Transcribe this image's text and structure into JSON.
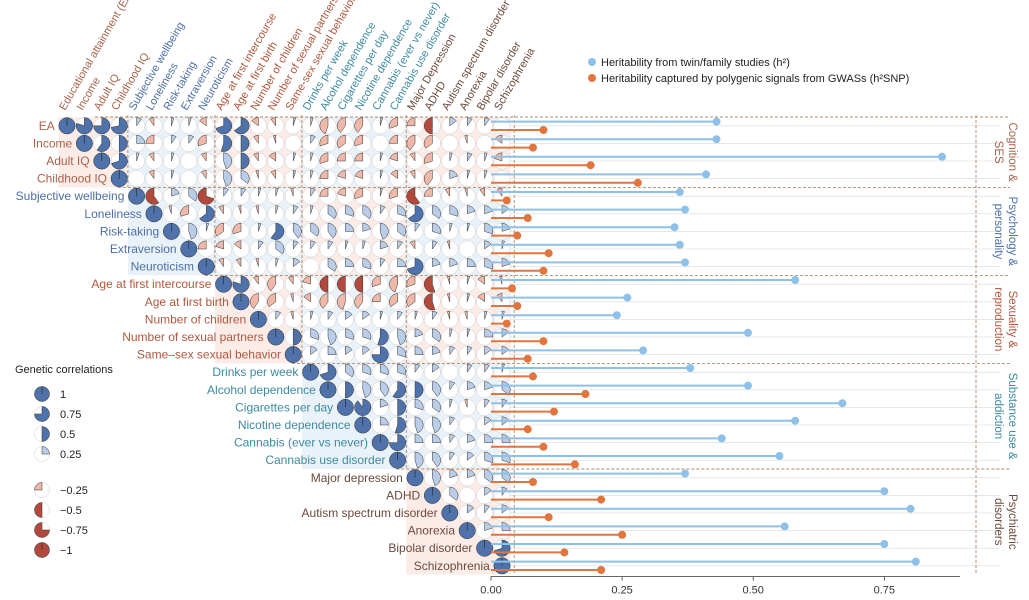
{
  "chart_data": [
    {
      "type": "heatmap",
      "title": "Genetic correlations",
      "traits": [
        {
          "name": "EA",
          "domain": 0
        },
        {
          "name": "Income",
          "domain": 0
        },
        {
          "name": "Adult IQ",
          "domain": 0
        },
        {
          "name": "Childhood IQ",
          "domain": 0
        },
        {
          "name": "Subjective wellbeing",
          "domain": 1
        },
        {
          "name": "Loneliness",
          "domain": 1
        },
        {
          "name": "Risk-taking",
          "domain": 1
        },
        {
          "name": "Extraversion",
          "domain": 1
        },
        {
          "name": "Neuroticism",
          "domain": 1
        },
        {
          "name": "Age at first intercourse",
          "domain": 2
        },
        {
          "name": "Age at first birth",
          "domain": 2
        },
        {
          "name": "Number of children",
          "domain": 2
        },
        {
          "name": "Number of sexual partners",
          "domain": 2
        },
        {
          "name": "Same–sex sexual behavior",
          "domain": 2
        },
        {
          "name": "Drinks per week",
          "domain": 3
        },
        {
          "name": "Alcohol dependence",
          "domain": 3
        },
        {
          "name": "Cigarettes per day",
          "domain": 3
        },
        {
          "name": "Nicotine dependence",
          "domain": 3
        },
        {
          "name": "Cannabis (ever vs never)",
          "domain": 3
        },
        {
          "name": "Cannabis use disorder",
          "domain": 3
        },
        {
          "name": "Major depression",
          "domain": 4
        },
        {
          "name": "ADHD",
          "domain": 4
        },
        {
          "name": "Autism spectrum disorder",
          "domain": 4
        },
        {
          "name": "Anorexia",
          "domain": 4
        },
        {
          "name": "Bipolar disorder",
          "domain": 4
        },
        {
          "name": "Schizophrenia",
          "domain": 4
        }
      ],
      "column_labels": [
        "Educational attainment (EA)",
        "Income",
        "Adult IQ",
        "Childhood IQ",
        "Subjective wellbeing",
        "Loneliness",
        "Risk-taking",
        "Extraversion",
        "Neuroticism",
        "Age at first intercourse",
        "Age at first birth",
        "Number of children",
        "Number of sexual partners",
        "Same-sex sexual behaviour",
        "Drinks per week",
        "Alcohol dependence",
        "Cigarettes per day",
        "Nicotine dependence",
        "Cannabis (ever vs never)",
        "Cannabis use disorder",
        "Major Depression",
        "ADHD",
        "Autism spectrum disorder",
        "Anorexia",
        "Bipolar disorder",
        "Schizophrenia"
      ],
      "correlations": [
        [
          1,
          0.8,
          0.75,
          0.72,
          0.1,
          -0.1,
          0.05,
          0.05,
          -0.15,
          0.7,
          0.65,
          -0.15,
          -0.1,
          0.05,
          0.05,
          -0.45,
          -0.4,
          -0.4,
          0.05,
          -0.3,
          -0.25,
          -0.5,
          0.15,
          0.1,
          0.1,
          0
        ],
        [
          0.8,
          1,
          0.6,
          0.5,
          0.25,
          -0.25,
          0.1,
          0.1,
          -0.3,
          0.55,
          0.5,
          -0.1,
          -0.05,
          0,
          0.1,
          -0.3,
          -0.35,
          -0.3,
          0,
          -0.25,
          -0.4,
          -0.35,
          0,
          -0.05,
          0,
          -0.15
        ],
        [
          0.75,
          0.6,
          1,
          0.7,
          0.05,
          -0.1,
          0.05,
          0,
          -0.1,
          0.45,
          0.5,
          -0.1,
          -0.15,
          0.05,
          0.05,
          -0.3,
          -0.25,
          -0.25,
          0.05,
          -0.2,
          -0.1,
          -0.3,
          0.05,
          0.1,
          0.05,
          -0.2
        ],
        [
          0.72,
          0.5,
          0.7,
          1,
          0,
          -0.1,
          0.05,
          0,
          -0.1,
          0.45,
          0.35,
          -0.05,
          -0.1,
          0.05,
          0.05,
          -0.25,
          -0.2,
          -0.2,
          0.05,
          -0.15,
          -0.1,
          -0.4,
          0.2,
          0.05,
          0.05,
          0
        ],
        [
          0.1,
          0.25,
          0.05,
          0,
          1,
          -0.6,
          0.2,
          0.35,
          -0.7,
          0.1,
          0.1,
          0.05,
          0.05,
          -0.05,
          0.1,
          -0.25,
          -0.2,
          -0.3,
          0.05,
          -0.3,
          -0.6,
          -0.25,
          -0.1,
          -0.05,
          -0.1,
          -0.1
        ],
        [
          -0.1,
          -0.25,
          -0.1,
          -0.1,
          -0.6,
          1,
          -0.05,
          -0.3,
          0.65,
          -0.1,
          -0.05,
          -0.05,
          0.05,
          0.1,
          0.05,
          0.35,
          0.3,
          0.35,
          0.1,
          0.3,
          0.65,
          0.35,
          0.3,
          0.2,
          0.2,
          0.15
        ],
        [
          0.05,
          0.1,
          0.05,
          0.05,
          0.2,
          -0.05,
          1,
          0.45,
          0.05,
          -0.35,
          -0.3,
          0.05,
          0.6,
          0.4,
          0.35,
          0.4,
          0.25,
          0.2,
          0.45,
          0.35,
          0.1,
          0.3,
          0.05,
          0.05,
          0.3,
          0.2
        ],
        [
          0.05,
          0.1,
          0,
          0,
          0.35,
          -0.3,
          0.45,
          1,
          -0.25,
          -0.2,
          -0.15,
          0.1,
          0.35,
          0.1,
          0.1,
          0.1,
          0.05,
          0.05,
          0.2,
          0.1,
          -0.1,
          0.1,
          -0.05,
          0,
          0.15,
          0.05
        ],
        [
          -0.15,
          -0.3,
          -0.1,
          -0.1,
          -0.7,
          0.65,
          0.05,
          -0.25,
          1,
          -0.1,
          -0.1,
          -0.05,
          0.05,
          0.15,
          0,
          0.35,
          0.25,
          0.3,
          0.1,
          0.25,
          0.7,
          0.2,
          0.2,
          0.25,
          0.3,
          0.2
        ],
        [
          0.7,
          0.55,
          0.45,
          0.45,
          0.1,
          -0.1,
          -0.35,
          -0.2,
          -0.1,
          1,
          0.8,
          -0.1,
          -0.4,
          -0.1,
          -0.2,
          -0.5,
          -0.5,
          -0.5,
          -0.3,
          -0.45,
          -0.3,
          -0.55,
          -0.05,
          0.05,
          -0.15,
          -0.05
        ],
        [
          0.65,
          0.5,
          0.5,
          0.35,
          0.1,
          -0.05,
          -0.3,
          -0.15,
          -0.1,
          0.8,
          1,
          -0.4,
          -0.35,
          -0.05,
          -0.15,
          -0.4,
          -0.45,
          -0.4,
          -0.25,
          -0.35,
          -0.35,
          -0.55,
          -0.05,
          0.05,
          -0.15,
          -0.1
        ],
        [
          -0.15,
          -0.1,
          -0.1,
          -0.05,
          0.05,
          -0.05,
          0.05,
          0.1,
          -0.05,
          -0.1,
          -0.4,
          1,
          0.1,
          -0.05,
          0.05,
          0.1,
          0.15,
          0.15,
          0.05,
          0.1,
          0.05,
          0.1,
          -0.05,
          -0.05,
          0.05,
          0.05
        ],
        [
          -0.1,
          -0.05,
          -0.15,
          -0.1,
          0.05,
          0.05,
          0.6,
          0.35,
          0.05,
          -0.4,
          -0.35,
          0.1,
          1,
          0.5,
          0.3,
          0.45,
          0.3,
          0.3,
          0.55,
          0.45,
          0.2,
          0.35,
          0.05,
          0.05,
          0.25,
          0.15
        ],
        [
          0.05,
          0,
          0.05,
          0.05,
          -0.05,
          0.1,
          0.4,
          0.1,
          0.15,
          -0.1,
          -0.05,
          -0.05,
          0.5,
          1,
          0.15,
          0.25,
          0.15,
          0.15,
          0.75,
          0.3,
          0.25,
          0.2,
          0.1,
          0.1,
          0.15,
          0.15
        ],
        [
          0.05,
          0.1,
          0.05,
          0.05,
          0.1,
          0.05,
          0.35,
          0.1,
          0,
          -0.2,
          -0.15,
          0.05,
          0.3,
          0.15,
          1,
          0.7,
          0.35,
          0.3,
          0.3,
          0.3,
          0.1,
          0.15,
          0,
          0.1,
          0.1,
          0.05
        ],
        [
          -0.45,
          -0.3,
          -0.3,
          -0.25,
          -0.25,
          0.35,
          0.4,
          0.1,
          0.35,
          -0.5,
          -0.4,
          0.1,
          0.45,
          0.25,
          0.7,
          1,
          0.5,
          0.45,
          0.4,
          0.6,
          0.5,
          0.4,
          0.1,
          0.2,
          0.2,
          0.35
        ],
        [
          -0.4,
          -0.35,
          -0.25,
          -0.2,
          -0.2,
          0.3,
          0.25,
          0.05,
          0.25,
          -0.5,
          -0.45,
          0.15,
          0.3,
          0.15,
          0.35,
          0.5,
          1,
          0.9,
          0.2,
          0.5,
          0.3,
          0.35,
          0.05,
          -0.05,
          0.1,
          0.1
        ],
        [
          -0.4,
          -0.3,
          -0.25,
          -0.2,
          -0.3,
          0.35,
          0.2,
          0.05,
          0.3,
          -0.5,
          -0.4,
          0.15,
          0.3,
          0.15,
          0.3,
          0.45,
          0.9,
          1,
          0.25,
          0.55,
          0.45,
          0.45,
          0.1,
          0,
          0.15,
          0.15
        ],
        [
          0.05,
          0,
          0.05,
          0.05,
          0.05,
          0.1,
          0.45,
          0.2,
          0.1,
          -0.3,
          -0.25,
          0.05,
          0.55,
          0.75,
          0.3,
          0.4,
          0.2,
          0.25,
          1,
          0.75,
          0.25,
          0.25,
          0.1,
          0.2,
          0.25,
          0.25
        ],
        [
          -0.3,
          -0.25,
          -0.2,
          -0.15,
          -0.3,
          0.3,
          0.35,
          0.1,
          0.25,
          -0.45,
          -0.35,
          0.1,
          0.45,
          0.3,
          0.3,
          0.6,
          0.5,
          0.55,
          0.75,
          1,
          0.45,
          0.4,
          0.1,
          0.15,
          0.3,
          0.3
        ],
        [
          -0.25,
          -0.4,
          -0.1,
          -0.1,
          -0.6,
          0.65,
          0.1,
          -0.1,
          0.7,
          -0.3,
          -0.35,
          0.05,
          0.2,
          0.25,
          0.1,
          0.5,
          0.3,
          0.45,
          0.25,
          0.45,
          1,
          0.45,
          0.2,
          0.2,
          0.35,
          0.35
        ],
        [
          -0.5,
          -0.35,
          -0.3,
          -0.4,
          -0.25,
          0.35,
          0.3,
          0.1,
          0.2,
          -0.55,
          -0.55,
          0.1,
          0.35,
          0.2,
          0.15,
          0.4,
          0.35,
          0.45,
          0.25,
          0.4,
          0.45,
          1,
          0.35,
          0,
          0.15,
          0.1
        ],
        [
          0.15,
          0,
          0.05,
          0.2,
          -0.1,
          0.3,
          0.05,
          -0.05,
          0.2,
          -0.05,
          -0.05,
          -0.05,
          0.05,
          0.1,
          0,
          0.1,
          0.05,
          0.1,
          0.1,
          0.1,
          0.2,
          0.35,
          1,
          0.15,
          0.1,
          0.15
        ],
        [
          0.1,
          -0.05,
          0.1,
          0.05,
          -0.05,
          0.2,
          0.05,
          0,
          0.25,
          0.05,
          0.05,
          -0.05,
          0.05,
          0.1,
          0.1,
          0.2,
          -0.05,
          0,
          0.2,
          0.15,
          0.2,
          0,
          0.15,
          1,
          0.2,
          0.25
        ],
        [
          0.1,
          0,
          0.05,
          0.05,
          -0.1,
          0.2,
          0.3,
          0.15,
          0.3,
          -0.15,
          -0.15,
          0.05,
          0.25,
          0.15,
          0.1,
          0.2,
          0.1,
          0.15,
          0.25,
          0.3,
          0.35,
          0.15,
          0.1,
          0.2,
          1,
          0.7
        ],
        [
          0,
          -0.15,
          -0.2,
          0,
          -0.1,
          0.15,
          0.2,
          0.05,
          0.2,
          -0.05,
          -0.1,
          0.05,
          0.15,
          0.15,
          0.05,
          0.35,
          0.1,
          0.15,
          0.25,
          0.3,
          0.35,
          0.1,
          0.15,
          0.25,
          0.7,
          1
        ]
      ],
      "legend": {
        "title": "Genetic correlations",
        "values": [
          1,
          0.75,
          0.5,
          0.25,
          -0.25,
          -0.5,
          -0.75,
          -1
        ],
        "labels": [
          "1",
          "0.75",
          "0.5",
          "0.25",
          "−0.25",
          "−0.5",
          "−0.75",
          "−1"
        ]
      }
    },
    {
      "type": "lollipop",
      "series": [
        {
          "name": "Heritability from twin/family studies (h²)",
          "color": "#8ec0e8",
          "values": [
            0.43,
            0.43,
            0.86,
            0.41,
            0.36,
            0.37,
            0.35,
            0.36,
            0.37,
            0.58,
            0.26,
            0.24,
            0.49,
            0.29,
            0.38,
            0.49,
            0.67,
            0.58,
            0.44,
            0.55,
            0.37,
            0.75,
            0.8,
            0.56,
            0.75,
            0.81
          ]
        },
        {
          "name": "Heritability captured by polygenic signals from GWASs (h²SNP)",
          "color": "#e2743e",
          "values": [
            0.1,
            0.08,
            0.19,
            0.28,
            0.03,
            0.07,
            0.05,
            0.11,
            0.1,
            0.04,
            0.05,
            0.03,
            0.1,
            0.07,
            0.08,
            0.18,
            0.12,
            0.07,
            0.1,
            0.16,
            0.08,
            0.21,
            0.11,
            0.25,
            0.14,
            0.21
          ]
        }
      ],
      "x_ticks": [
        0,
        0.25,
        0.5,
        0.75
      ],
      "x_tick_labels": [
        "0.00",
        "0.25",
        "0.50",
        "0.75"
      ],
      "xlim": [
        0,
        0.86
      ]
    }
  ],
  "domains": [
    {
      "label": "Cognition & SES",
      "lines": [
        "Cognition &",
        "SES"
      ],
      "color": "#a8624a",
      "tint": "#fbe6e0"
    },
    {
      "label": "Psychology & personality",
      "lines": [
        "Psychology &",
        "personality"
      ],
      "color": "#4d6fa6",
      "tint": "#e3eef7"
    },
    {
      "label": "Sexuality & reproduction",
      "lines": [
        "Sexuality &",
        "reproduction"
      ],
      "color": "#b0583d",
      "tint": "#fbe6e0"
    },
    {
      "label": "Substance use & addiction",
      "lines": [
        "Substance use &",
        "addiction"
      ],
      "color": "#3d8aa0",
      "tint": "#e3eef7"
    },
    {
      "label": "Psychiatric disorders",
      "lines": [
        "Psychiatric",
        "disorders"
      ],
      "color": "#6b4a3a",
      "tint": "#fbe6e0"
    }
  ],
  "colors": {
    "positive": "#4e72a9",
    "positive_light": "#b9cde8",
    "negative": "#b14a3c",
    "negative_light": "#f0b8a8",
    "grid": "#d8d8d8",
    "divider": "#b08a6a"
  }
}
